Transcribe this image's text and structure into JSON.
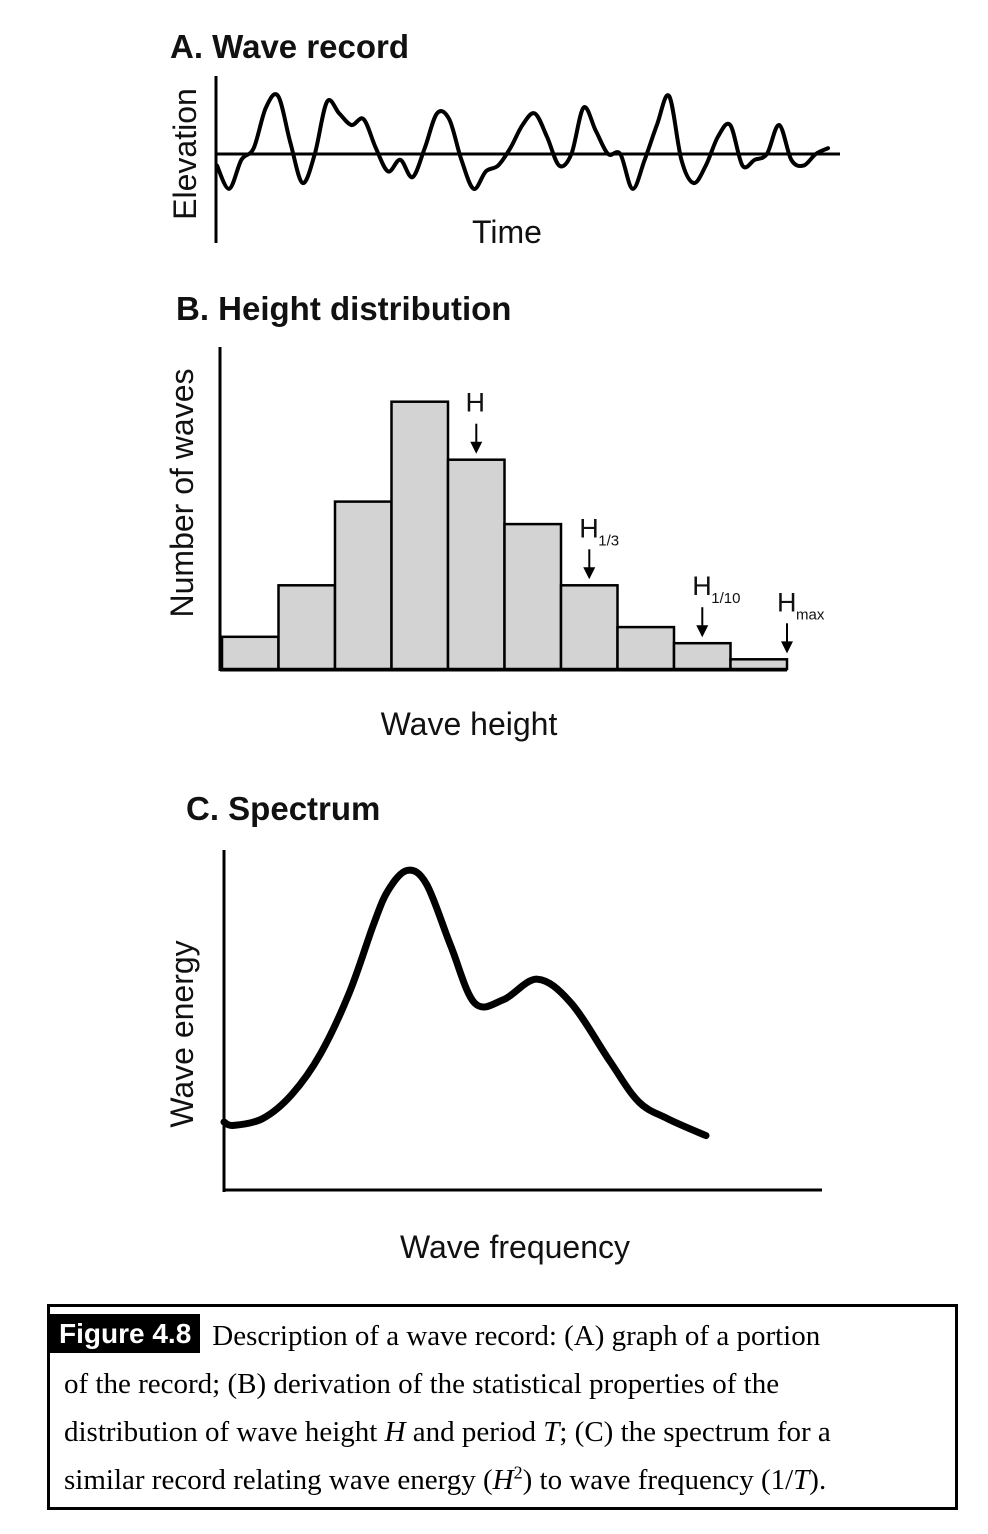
{
  "chart_data": [
    {
      "panel": "A",
      "type": "line",
      "title": "A. Wave record",
      "xlabel": "Time",
      "ylabel": "Elevation",
      "description_points": {
        "x": [
          0,
          2,
          4,
          6,
          8,
          10,
          12,
          14,
          16,
          18,
          20,
          22,
          24,
          26,
          28,
          30,
          32,
          34,
          36,
          38,
          40,
          42,
          44,
          46,
          48,
          50,
          52,
          54,
          56,
          58,
          60,
          62,
          64,
          66,
          68,
          70,
          72,
          74,
          76,
          78,
          80,
          82,
          84,
          86,
          88,
          90,
          92,
          94,
          96,
          98,
          100
        ],
        "y": [
          -0.2,
          -0.6,
          -0.1,
          0.1,
          0.8,
          1.0,
          0.2,
          -0.5,
          0.0,
          0.9,
          0.7,
          0.5,
          0.6,
          0.1,
          -0.3,
          -0.1,
          -0.4,
          0.1,
          0.7,
          0.6,
          -0.1,
          -0.6,
          -0.3,
          -0.2,
          0.1,
          0.5,
          0.7,
          0.3,
          -0.2,
          0.0,
          0.8,
          0.4,
          0.0,
          0.0,
          -0.6,
          -0.1,
          0.5,
          1.0,
          -0.1,
          -0.5,
          -0.2,
          0.3,
          0.5,
          -0.2,
          -0.1,
          0.0,
          0.5,
          -0.1,
          -0.2,
          0.0,
          0.1
        ]
      }
    },
    {
      "panel": "B",
      "type": "bar",
      "title": "B. Height distribution",
      "xlabel": "Wave height",
      "ylabel": "Number of waves",
      "values": [
        10,
        26,
        52,
        83,
        65,
        45,
        26,
        13,
        8,
        3
      ],
      "ylim": [
        0,
        100
      ],
      "annotations": [
        {
          "label": "H",
          "sub": "",
          "bin": 4.5
        },
        {
          "label": "H",
          "sub": "1/3",
          "bin": 6.5
        },
        {
          "label": "H",
          "sub": "1/10",
          "bin": 8.5
        },
        {
          "label": "H",
          "sub": "max",
          "bin": 10.0
        }
      ]
    },
    {
      "panel": "C",
      "type": "line",
      "title": "C. Spectrum",
      "xlabel": "Wave frequency",
      "ylabel": "Wave energy",
      "x": [
        0,
        2,
        8,
        14,
        20,
        26,
        31,
        34,
        38,
        42,
        47,
        52,
        58,
        65,
        72,
        80,
        86,
        92,
        100
      ],
      "y": [
        20,
        19,
        21,
        28,
        40,
        58,
        78,
        88,
        94,
        90,
        72,
        55,
        56,
        62,
        55,
        38,
        26,
        21,
        16
      ],
      "ylim": [
        0,
        100
      ],
      "xlim": [
        0,
        100
      ]
    }
  ],
  "caption": {
    "label": "Figure 4.8",
    "line1": "Description of a wave record: (A) graph of a portion",
    "line2": "of the record; (B) derivation of the statistical properties of the",
    "line3_a": "distribution of wave height ",
    "line3_H": "H",
    "line3_b": " and period ",
    "line3_T": "T",
    "line3_c": "; (C) the spectrum for a",
    "line4_a": "similar record relating wave energy (",
    "line4_H": "H",
    "line4_sup": "2",
    "line4_b": ") to wave frequency (1/",
    "line4_T": "T",
    "line4_c": ")."
  }
}
